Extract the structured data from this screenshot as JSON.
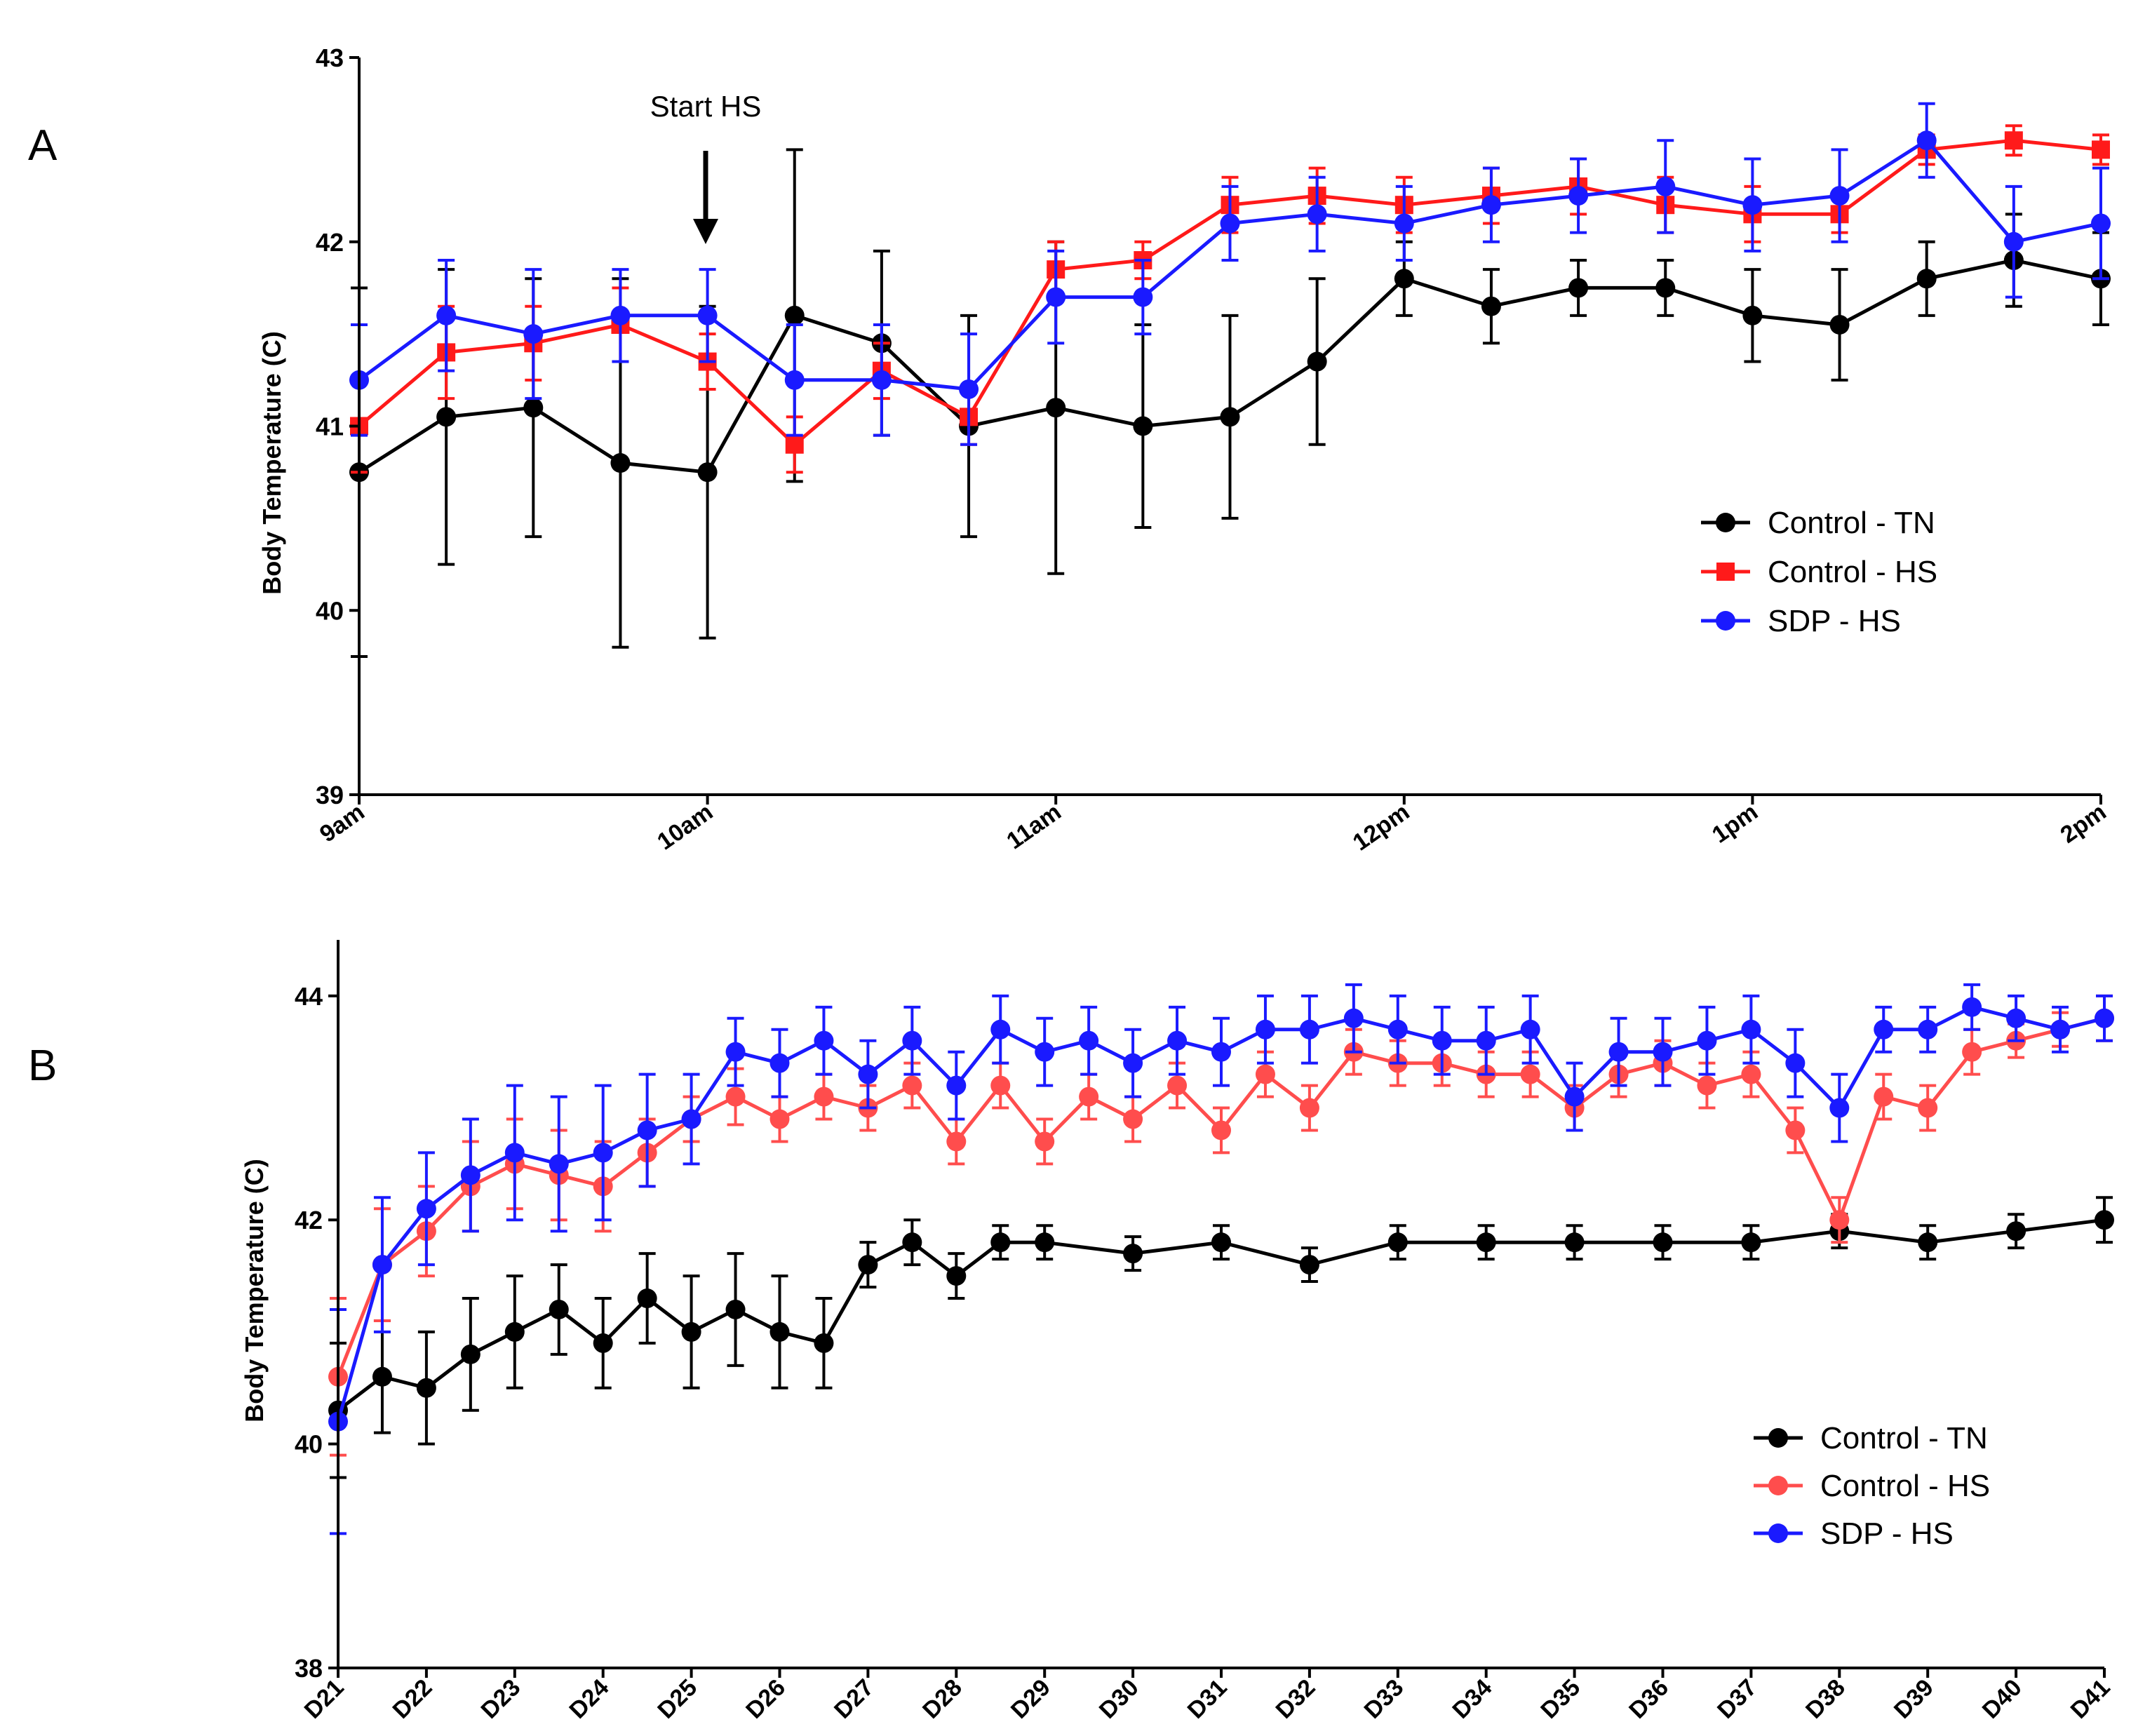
{
  "chart_data": [
    {
      "panel": "A",
      "type": "line",
      "title": "",
      "xlabel": "",
      "ylabel": "Body Temperature (C)",
      "ylim": [
        39,
        43
      ],
      "yticks": [
        39,
        40,
        41,
        42,
        43
      ],
      "xlim": [
        0,
        5
      ],
      "xticks": [
        0,
        1,
        2,
        3,
        4,
        5
      ],
      "xtick_labels": [
        "9am",
        "10am",
        "11am",
        "12pm",
        "1pm",
        "2pm"
      ],
      "annotation": {
        "text": "Start HS",
        "x": 1.0
      },
      "legend": {
        "position": "right",
        "entries": [
          "Control - TN",
          "Control - HS",
          "SDP - HS"
        ]
      },
      "series": [
        {
          "name": "Control - TN",
          "color": "#000000",
          "marker": "circle",
          "x": [
            0,
            0.25,
            0.5,
            0.75,
            1,
            1.25,
            1.5,
            1.75,
            2,
            2.25,
            2.5,
            2.75,
            3,
            3.25,
            3.5,
            3.75,
            4,
            4.25,
            4.5,
            4.75,
            5
          ],
          "y": [
            40.75,
            41.05,
            41.1,
            40.8,
            40.75,
            41.6,
            41.45,
            41.0,
            41.1,
            41.0,
            41.05,
            41.35,
            41.8,
            41.65,
            41.75,
            41.75,
            41.6,
            41.55,
            41.8,
            41.9,
            41.8
          ],
          "err": [
            1.0,
            0.8,
            0.7,
            1.0,
            0.9,
            0.9,
            0.5,
            0.6,
            0.9,
            0.55,
            0.55,
            0.45,
            0.2,
            0.2,
            0.15,
            0.15,
            0.25,
            0.3,
            0.2,
            0.25,
            0.25
          ]
        },
        {
          "name": "Control - HS",
          "color": "#ff1a1a",
          "marker": "square",
          "x": [
            0,
            0.25,
            0.5,
            0.75,
            1,
            1.25,
            1.5,
            1.75,
            2,
            2.25,
            2.5,
            2.75,
            3,
            3.25,
            3.5,
            3.75,
            4,
            4.25,
            4.5,
            4.75,
            5
          ],
          "y": [
            41.0,
            41.4,
            41.45,
            41.55,
            41.35,
            40.9,
            41.3,
            41.05,
            41.85,
            41.9,
            42.2,
            42.25,
            42.2,
            42.25,
            42.3,
            42.2,
            42.15,
            42.15,
            42.5,
            42.55,
            42.5
          ],
          "err": [
            0.25,
            0.25,
            0.2,
            0.2,
            0.15,
            0.15,
            0.15,
            0.15,
            0.15,
            0.1,
            0.15,
            0.15,
            0.15,
            0.15,
            0.15,
            0.15,
            0.15,
            0.1,
            0.08,
            0.08,
            0.08
          ]
        },
        {
          "name": "SDP - HS",
          "color": "#1a1aff",
          "marker": "circle",
          "x": [
            0,
            0.25,
            0.5,
            0.75,
            1,
            1.25,
            1.5,
            1.75,
            2,
            2.25,
            2.5,
            2.75,
            3,
            3.25,
            3.5,
            3.75,
            4,
            4.25,
            4.5,
            4.75,
            5
          ],
          "y": [
            41.25,
            41.6,
            41.5,
            41.6,
            41.6,
            41.25,
            41.25,
            41.2,
            41.7,
            41.7,
            42.1,
            42.15,
            42.1,
            42.2,
            42.25,
            42.3,
            42.2,
            42.25,
            42.55,
            42.0,
            42.1
          ],
          "err": [
            0.3,
            0.3,
            0.35,
            0.25,
            0.25,
            0.3,
            0.3,
            0.3,
            0.25,
            0.2,
            0.2,
            0.2,
            0.2,
            0.2,
            0.2,
            0.25,
            0.25,
            0.25,
            0.2,
            0.3,
            0.3
          ]
        }
      ]
    },
    {
      "panel": "B",
      "type": "line",
      "title": "",
      "xlabel": "",
      "ylabel": "Body Temperature (C)",
      "ylim": [
        38,
        44.5
      ],
      "yticks": [
        38,
        40,
        42,
        44
      ],
      "xlim": [
        21,
        41
      ],
      "xtick_labels": [
        "D21",
        "D22",
        "D23",
        "D24",
        "D25",
        "D26",
        "D27",
        "D28",
        "D29",
        "D30",
        "D31",
        "D32",
        "D33",
        "D34",
        "D35",
        "D36",
        "D37",
        "D38",
        "D39",
        "D40",
        "D41"
      ],
      "legend": {
        "position": "right",
        "entries": [
          "Control - TN",
          "Control - HS",
          "SDP - HS"
        ]
      },
      "series": [
        {
          "name": "Control - TN",
          "color": "#000000",
          "marker": "circle",
          "x": [
            21,
            21.5,
            22,
            22.5,
            23,
            23.5,
            24,
            24.5,
            25,
            25.5,
            26,
            26.5,
            27,
            27.5,
            28,
            28.5,
            29,
            30,
            31,
            32,
            33,
            34,
            35,
            36,
            37,
            38,
            39,
            40,
            41
          ],
          "y": [
            40.3,
            40.6,
            40.5,
            40.8,
            41.0,
            41.2,
            40.9,
            41.3,
            41.0,
            41.2,
            41.0,
            40.9,
            41.6,
            41.8,
            41.5,
            41.8,
            41.8,
            41.7,
            41.8,
            41.6,
            41.8,
            41.8,
            41.8,
            41.8,
            41.8,
            41.9,
            41.8,
            41.9,
            42.0
          ],
          "err": [
            0.6,
            0.5,
            0.5,
            0.5,
            0.5,
            0.4,
            0.4,
            0.4,
            0.5,
            0.5,
            0.5,
            0.4,
            0.2,
            0.2,
            0.2,
            0.15,
            0.15,
            0.15,
            0.15,
            0.15,
            0.15,
            0.15,
            0.15,
            0.15,
            0.15,
            0.15,
            0.15,
            0.15,
            0.2
          ]
        },
        {
          "name": "Control - HS",
          "color": "#ff4d4d",
          "marker": "circle",
          "x": [
            21,
            21.5,
            22,
            22.5,
            23,
            23.5,
            24,
            24.5,
            25,
            25.5,
            26,
            26.5,
            27,
            27.5,
            28,
            28.5,
            29,
            29.5,
            30,
            30.5,
            31,
            31.5,
            32,
            32.5,
            33,
            33.5,
            34,
            34.5,
            35,
            35.5,
            36,
            36.5,
            37,
            37.5,
            38,
            38.5,
            39,
            39.5,
            40,
            40.5,
            41
          ],
          "y": [
            40.6,
            41.6,
            41.9,
            42.3,
            42.5,
            42.4,
            42.3,
            42.6,
            42.9,
            43.1,
            42.9,
            43.1,
            43.0,
            43.2,
            42.7,
            43.2,
            42.7,
            43.1,
            42.9,
            43.2,
            42.8,
            43.3,
            43.0,
            43.5,
            43.4,
            43.4,
            43.3,
            43.3,
            43.0,
            43.3,
            43.4,
            43.2,
            43.3,
            42.8,
            42.0,
            43.1,
            43.0,
            43.5,
            43.6,
            43.7,
            43.8
          ],
          "err": [
            0.7,
            0.5,
            0.4,
            0.4,
            0.4,
            0.4,
            0.4,
            0.3,
            0.2,
            0.25,
            0.2,
            0.2,
            0.2,
            0.2,
            0.2,
            0.2,
            0.2,
            0.2,
            0.2,
            0.2,
            0.2,
            0.2,
            0.2,
            0.2,
            0.2,
            0.2,
            0.2,
            0.2,
            0.2,
            0.2,
            0.2,
            0.2,
            0.2,
            0.2,
            0.2,
            0.2,
            0.2,
            0.2,
            0.15,
            0.15,
            0.2
          ]
        },
        {
          "name": "SDP - HS",
          "color": "#1a1aff",
          "marker": "circle",
          "x": [
            21,
            21.5,
            22,
            22.5,
            23,
            23.5,
            24,
            24.5,
            25,
            25.5,
            26,
            26.5,
            27,
            27.5,
            28,
            28.5,
            29,
            29.5,
            30,
            30.5,
            31,
            31.5,
            32,
            32.5,
            33,
            33.5,
            34,
            34.5,
            35,
            35.5,
            36,
            36.5,
            37,
            37.5,
            38,
            38.5,
            39,
            39.5,
            40,
            40.5,
            41
          ],
          "y": [
            40.2,
            41.6,
            42.1,
            42.4,
            42.6,
            42.5,
            42.6,
            42.8,
            42.9,
            43.5,
            43.4,
            43.6,
            43.3,
            43.6,
            43.2,
            43.7,
            43.5,
            43.6,
            43.4,
            43.6,
            43.5,
            43.7,
            43.7,
            43.8,
            43.7,
            43.6,
            43.6,
            43.7,
            43.1,
            43.5,
            43.5,
            43.6,
            43.7,
            43.4,
            43.0,
            43.7,
            43.7,
            43.9,
            43.8,
            43.7,
            43.8
          ],
          "err": [
            1.0,
            0.6,
            0.5,
            0.5,
            0.6,
            0.6,
            0.6,
            0.5,
            0.4,
            0.3,
            0.3,
            0.3,
            0.3,
            0.3,
            0.3,
            0.3,
            0.3,
            0.3,
            0.3,
            0.3,
            0.3,
            0.3,
            0.3,
            0.3,
            0.3,
            0.3,
            0.3,
            0.3,
            0.3,
            0.3,
            0.3,
            0.3,
            0.3,
            0.3,
            0.3,
            0.2,
            0.2,
            0.2,
            0.2,
            0.2,
            0.2
          ]
        }
      ]
    }
  ]
}
